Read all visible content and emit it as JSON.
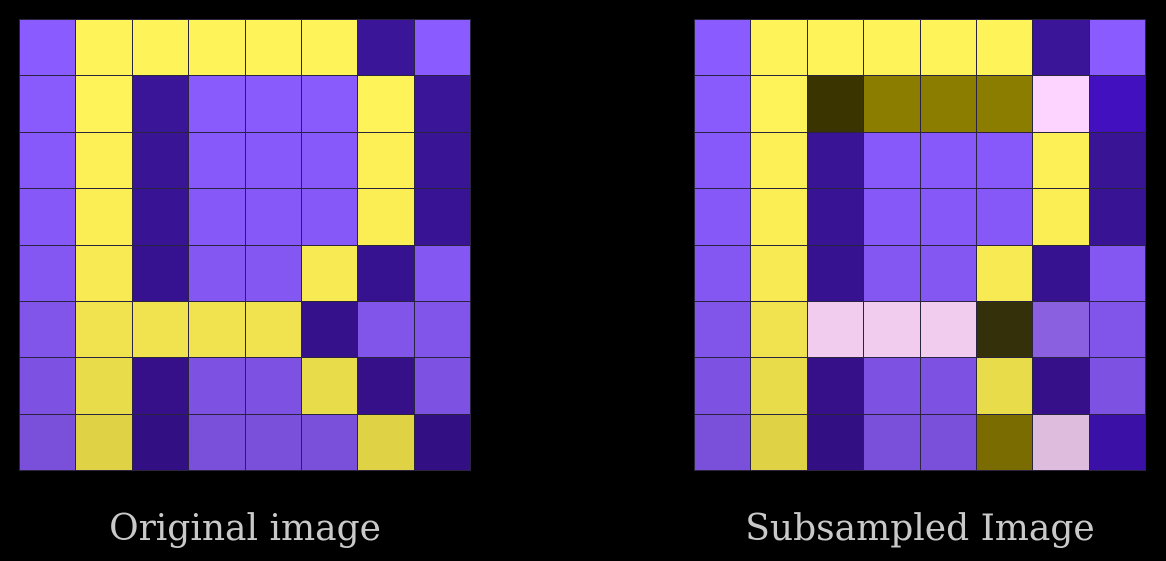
{
  "panels": [
    {
      "caption": "Original image",
      "grid": [
        [
          "#8A5CFF",
          "#FFF35A",
          "#FFF35A",
          "#FFF35A",
          "#FFF35A",
          "#FFF35A",
          "#3A1598",
          "#8A5CFF"
        ],
        [
          "#895BFD",
          "#FFF35A",
          "#3A1598",
          "#895BFD",
          "#895BFD",
          "#895BFD",
          "#FFF35A",
          "#3A1598"
        ],
        [
          "#8859FA",
          "#FDF057",
          "#391495",
          "#8859FA",
          "#8859FA",
          "#8859FA",
          "#FDF057",
          "#391495"
        ],
        [
          "#8658F7",
          "#FBEE55",
          "#381393",
          "#8658F7",
          "#8658F7",
          "#8658F7",
          "#FBEE55",
          "#381393"
        ],
        [
          "#8456F2",
          "#F7EA52",
          "#371290",
          "#8456F2",
          "#8456F2",
          "#F7EA52",
          "#371290",
          "#8456F2"
        ],
        [
          "#8154EA",
          "#F1E34F",
          "#F1E34F",
          "#F1E34F",
          "#F1E34F",
          "#36118C",
          "#8154EA",
          "#8154EA"
        ],
        [
          "#7D52E2",
          "#E9DC4A",
          "#351088",
          "#7D52E2",
          "#7D52E2",
          "#E9DC4A",
          "#351088",
          "#7D52E2"
        ],
        [
          "#7A4FD9",
          "#DFD244",
          "#330F84",
          "#7A4FD9",
          "#7A4FD9",
          "#7A4FD9",
          "#DFD244",
          "#330F84"
        ]
      ]
    },
    {
      "caption": "Subsampled Image",
      "grid": [
        [
          "#8A5CFF",
          "#FFF35A",
          "#FFF35A",
          "#FFF35A",
          "#FFF35A",
          "#FFF35A",
          "#3A1598",
          "#8A5CFF"
        ],
        [
          "#895BFD",
          "#FFF35A",
          "#3A3500",
          "#8A7D00",
          "#8A7D00",
          "#8A7D00",
          "#FDD4FF",
          "#4210BE"
        ],
        [
          "#8859FA",
          "#FDF057",
          "#391495",
          "#8859FA",
          "#8859FA",
          "#8859FA",
          "#FDF057",
          "#391495"
        ],
        [
          "#8658F7",
          "#FBEE55",
          "#381393",
          "#8658F7",
          "#8658F7",
          "#8658F7",
          "#FBEE55",
          "#381393"
        ],
        [
          "#8456F2",
          "#F7EA52",
          "#371290",
          "#8456F2",
          "#8456F2",
          "#F7EA52",
          "#371290",
          "#8456F2"
        ],
        [
          "#8154EA",
          "#F1E34F",
          "#F2CCEF",
          "#F2CCEF",
          "#F2CCEF",
          "#33300A",
          "#8A60E0",
          "#8154EA"
        ],
        [
          "#7D52E2",
          "#E9DC4A",
          "#351088",
          "#7D52E2",
          "#7D52E2",
          "#E9DC4A",
          "#351088",
          "#7D52E2"
        ],
        [
          "#7A4FD9",
          "#DFD244",
          "#330F84",
          "#7A4FD9",
          "#7A4FD9",
          "#7A6C00",
          "#DEBCDD",
          "#3A10A6"
        ]
      ]
    }
  ]
}
